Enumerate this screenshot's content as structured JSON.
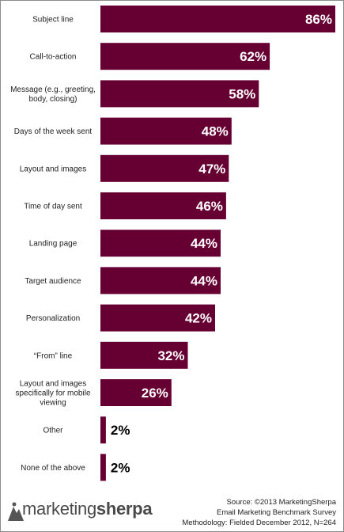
{
  "chart_data": {
    "type": "bar",
    "orientation": "horizontal",
    "categories": [
      "Subject line",
      "Call-to-action",
      "Message (e.g., greeting, body, closing)",
      "Days of the week sent",
      "Layout and images",
      "Time of day sent",
      "Landing page",
      "Target audience",
      "Personalization",
      "“From” line",
      "Layout and images specifically for mobile viewing",
      "Other",
      "None of the above"
    ],
    "category_lines": [
      [
        "Subject line"
      ],
      [
        "Call-to-action"
      ],
      [
        "Message (e.g., greeting,",
        "body, closing)"
      ],
      [
        "Days of the week sent"
      ],
      [
        "Layout and images"
      ],
      [
        "Time of day sent"
      ],
      [
        "Landing page"
      ],
      [
        "Target audience"
      ],
      [
        "Personalization"
      ],
      [
        "“From” line"
      ],
      [
        "Layout and images",
        "specifically for mobile",
        "viewing"
      ],
      [
        "Other"
      ],
      [
        "None of the above"
      ]
    ],
    "values": [
      86,
      62,
      58,
      48,
      47,
      46,
      44,
      44,
      42,
      32,
      26,
      2,
      2
    ],
    "value_labels": [
      "86%",
      "62%",
      "58%",
      "48%",
      "47%",
      "46%",
      "44%",
      "44%",
      "42%",
      "32%",
      "26%",
      "2%",
      "2%"
    ],
    "xlim": [
      0,
      86
    ],
    "bar_color": "#660033",
    "grid": false,
    "legend": "none"
  },
  "logo": {
    "part1": "marketing",
    "part2": "sherpa",
    "icon": "sherpa-mountain-icon"
  },
  "source": {
    "line1": "Source: ©2013 MarketingSherpa",
    "line2": "Email Marketing Benchmark Survey",
    "line3": "Methodology: Fielded December 2012, N=264"
  }
}
